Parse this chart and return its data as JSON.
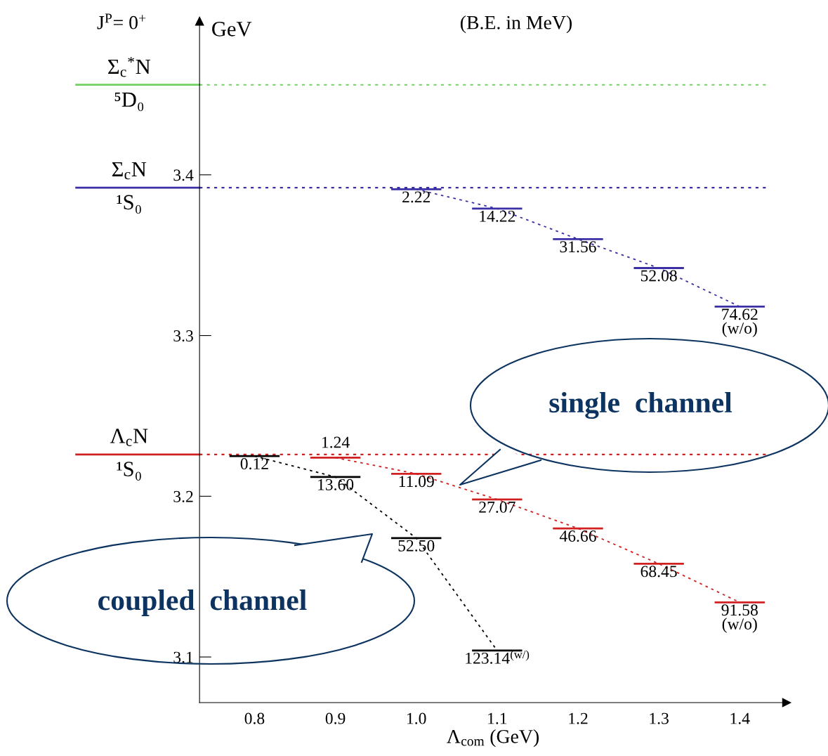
{
  "chart_data": {
    "type": "line",
    "xlabel": "Λ$_{com}$ (GeV)",
    "ylabel": "GeV",
    "x": [
      0.8,
      0.9,
      1.0,
      1.1,
      1.2,
      1.3,
      1.4
    ],
    "xlim": [
      0.732,
      1.458
    ],
    "xticks": [
      0.8,
      0.9,
      {
        "value": 1.0,
        "label": "1.0"
      },
      1.1,
      1.2,
      1.3,
      1.4
    ],
    "ylim": [
      3.0716,
      3.4956
    ],
    "yticks": [
      3.1,
      3.2,
      3.3,
      3.4
    ],
    "line_style": "dotted",
    "grid": false,
    "series": [
      {
        "color": "#3b2fa6",
        "values": [
          null,
          null,
          3.391,
          3.379,
          3.36,
          3.342,
          3.318
        ]
      },
      {
        "color": "#d02020",
        "values": [
          null,
          3.224,
          3.214,
          3.198,
          3.18,
          3.158,
          3.134
        ]
      },
      {
        "color": "#000000",
        "values": [
          3.225,
          3.212,
          3.174,
          3.104,
          null,
          null,
          null
        ]
      }
    ],
    "ref_lines": [
      {
        "axis": "y",
        "value": 3.456,
        "label": "Σ$_{c}$$^{*}$N\n⁵D₀",
        "color": "#70d060",
        "line_style": "dotted"
      },
      {
        "axis": "y",
        "value": 3.392,
        "label": "Σ$_{c}$N\n¹S₀",
        "color": "#3b2fa6",
        "line_style": "dotted"
      },
      {
        "axis": "y",
        "value": 3.226,
        "label": "Λ$_{c}$N\n¹S₀",
        "color": "#d02020",
        "line_style": "dotted"
      }
    ],
    "annotations": [
      "J$^{P}$= 0$^{+}$",
      "(B.E. in MeV)",
      "single  channel",
      "coupled  channel",
      {
        "text": "2.22",
        "x": 1.0,
        "y": 3.391
      },
      {
        "text": "14.22",
        "x": 1.1,
        "y": 3.379
      },
      {
        "text": "31.56",
        "x": 1.2,
        "y": 3.36
      },
      {
        "text": "52.08",
        "x": 1.3,
        "y": 3.342
      },
      {
        "text": "74.62\n(w/o)",
        "x": 1.4,
        "y": 3.318
      },
      {
        "text": "1.24",
        "x": 0.9,
        "y": 3.224
      },
      {
        "text": "11.09",
        "x": 1.0,
        "y": 3.214
      },
      {
        "text": "27.07",
        "x": 1.1,
        "y": 3.198
      },
      {
        "text": "46.66",
        "x": 1.2,
        "y": 3.18
      },
      {
        "text": "68.45",
        "x": 1.3,
        "y": 3.158
      },
      {
        "text": "91.58\n(w/o)",
        "x": 1.4,
        "y": 3.134
      },
      {
        "text": "0.12",
        "x": 0.8,
        "y": 3.225
      },
      {
        "text": "13.60",
        "x": 0.9,
        "y": 3.212
      },
      {
        "text": "52.50",
        "x": 1.0,
        "y": 3.174
      },
      {
        "text": "123.14$^{(w/)}$",
        "x": 1.1,
        "y": 3.104
      }
    ]
  }
}
